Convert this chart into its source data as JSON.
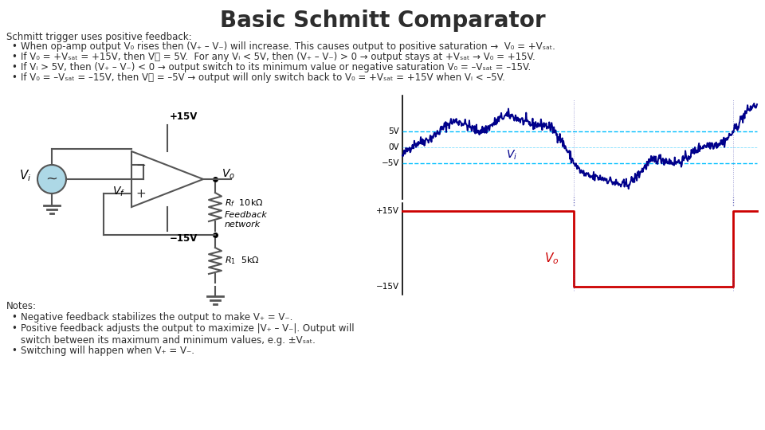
{
  "title": "Basic Schmitt Comparator",
  "title_fontsize": 20,
  "title_fontweight": "bold",
  "background_color": "#ffffff",
  "text_color": "#2d2d2d",
  "body_fontsize": 8.5,
  "intro_line": "Schmitt trigger uses positive feedback:",
  "bullets": [
    "When op-amp output V₀ rises then (V₊ – V₋) will increase. This causes output to positive saturation →  V₀ = +Vₛₐₜ.",
    "If V₀ = +Vₛₐₜ = +15V, then V⁦ = 5V.  For any Vᵢ < 5V, then (V₊ – V₋) > 0 → output stays at +Vₛₐₜ → V₀ = +15V.",
    "If Vᵢ > 5V, then (V₊ – V₋) < 0 → output switch to its minimum value or negative saturation V₀ = –Vₛₐₜ = –15V.",
    "If V₀ = –Vₛₐₜ = –15V, then V⁦ = –5V → output will only switch back to V₀ = +Vₛₐₜ = +15V when Vᵢ < –5V."
  ],
  "notes_header": "Notes:",
  "notes_bullets": [
    "Negative feedback stabilizes the output to make V₊ = V₋.",
    "Positive feedback adjusts the output to maximize |V₊ – V₋|. Output will\nswitch between its maximum and minimum values, e.g. ±Vₛₐₜ.",
    "Switching will happen when V₊ = V₋."
  ],
  "waveform_color_vi": "#00008B",
  "waveform_color_vo": "#CC0000",
  "threshold_color": "#00BFFF",
  "vline_color": "#4040AA"
}
